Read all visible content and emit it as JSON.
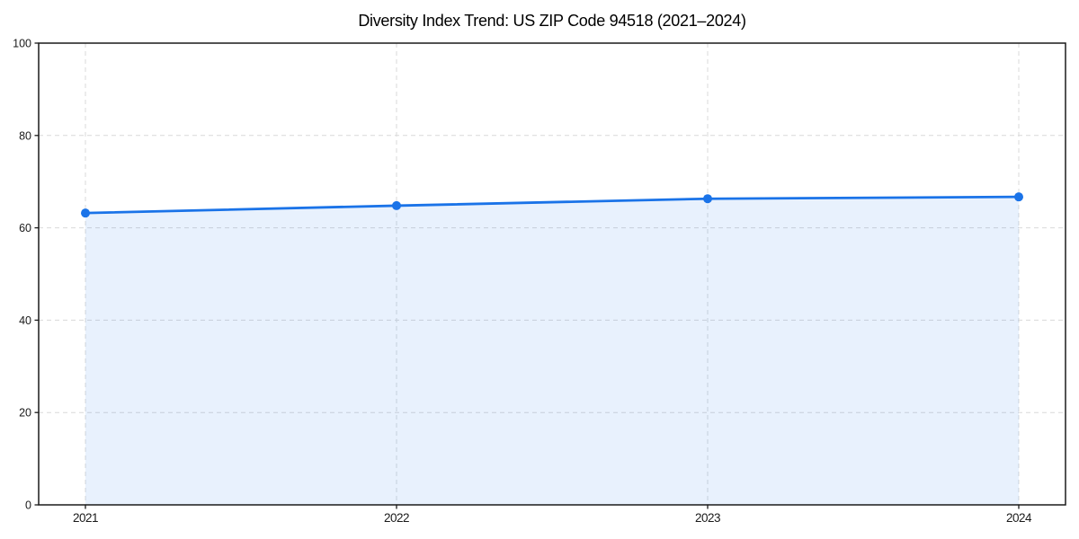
{
  "page": {
    "background_color": "#ffffff"
  },
  "chart_data": {
    "type": "line",
    "title": "Diversity Index Trend: US ZIP Code 94518 (2021–2024)",
    "categories": [
      "2021",
      "2022",
      "2023",
      "2024"
    ],
    "series": [
      {
        "name": "Diversity Index",
        "values": [
          63.2,
          64.8,
          66.3,
          66.7
        ]
      }
    ],
    "xlabel": "",
    "ylabel": "",
    "ylim": [
      0,
      100
    ],
    "yticks": [
      0,
      20,
      40,
      60,
      80,
      100
    ],
    "grid": true,
    "grid_style": "dashed",
    "area_fill": true,
    "markers": true,
    "legend_position": "none",
    "colors": {
      "line": "#1a73e8",
      "marker": "#1a73e8",
      "fill": "#1a73e8",
      "fill_opacity": 0.1,
      "grid": "#d9d9d9",
      "spine": "#1a1a1a",
      "tick_text": "#1a1a1a",
      "title_text": "#000000",
      "background": "#ffffff"
    }
  }
}
